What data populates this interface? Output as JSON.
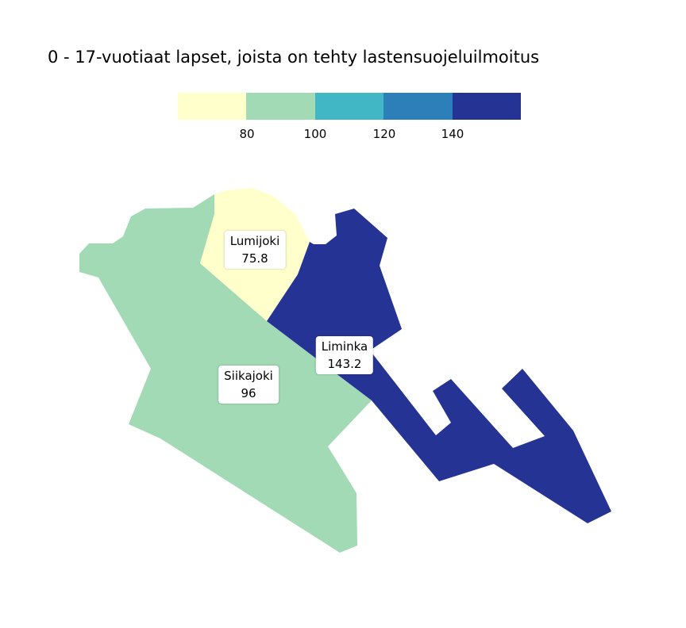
{
  "title": "0 - 17-vuotiaat lapset, joista on tehty lastensuojeluilmoitus",
  "legend": {
    "bins": [
      {
        "color": "#FFFFCC"
      },
      {
        "color": "#A1DAB4"
      },
      {
        "color": "#41B6C4"
      },
      {
        "color": "#2C7FB8"
      },
      {
        "color": "#253494"
      }
    ],
    "ticks": [
      "80",
      "100",
      "120",
      "140"
    ]
  },
  "regions": [
    {
      "name": "Siikajoki",
      "value": "96",
      "color": "#A1DAB4"
    },
    {
      "name": "Lumijoki",
      "value": "75.8",
      "color": "#FFFFCC"
    },
    {
      "name": "Liminka",
      "value": "143.2",
      "color": "#253494"
    }
  ]
}
